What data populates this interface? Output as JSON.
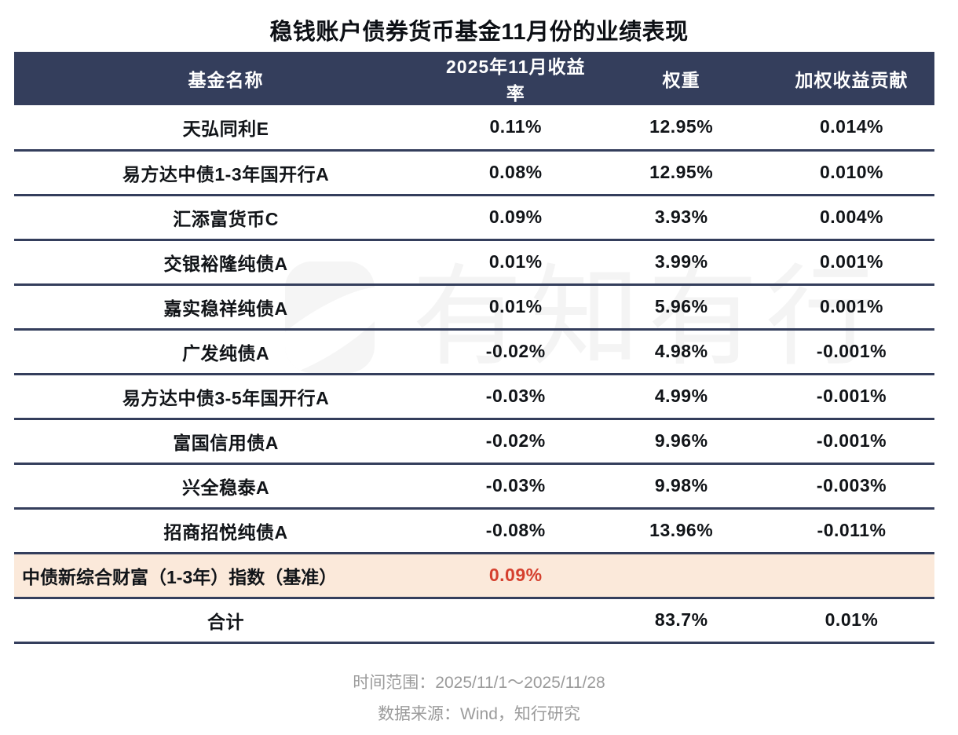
{
  "chart_data": {
    "type": "table",
    "title": "稳钱账户债券货币基金11月份的业绩表现",
    "columns": [
      "基金名称",
      "2025年11月收益率",
      "权重",
      "加权收益贡献"
    ],
    "rows": [
      [
        "天弘同利E",
        "0.11%",
        "12.95%",
        "0.014%"
      ],
      [
        "易方达中债1-3年国开行A",
        "0.08%",
        "12.95%",
        "0.010%"
      ],
      [
        "汇添富货币C",
        "0.09%",
        "3.93%",
        "0.004%"
      ],
      [
        "交银裕隆纯债A",
        "0.01%",
        "3.99%",
        "0.001%"
      ],
      [
        "嘉实稳祥纯债A",
        "0.01%",
        "5.96%",
        "0.001%"
      ],
      [
        "广发纯债A",
        "-0.02%",
        "4.98%",
        "-0.001%"
      ],
      [
        "易方达中债3-5年国开行A",
        "-0.03%",
        "4.99%",
        "-0.001%"
      ],
      [
        "富国信用债A",
        "-0.02%",
        "9.96%",
        "-0.001%"
      ],
      [
        "兴全稳泰A",
        "-0.03%",
        "9.98%",
        "-0.003%"
      ],
      [
        "招商招悦纯债A",
        "-0.08%",
        "13.96%",
        "-0.011%"
      ]
    ],
    "benchmark_row": [
      "中债新综合财富（1-3年）指数（基准）",
      "0.09%",
      "",
      ""
    ],
    "total_row": [
      "合计",
      "",
      "83.7%",
      "0.01%"
    ],
    "layout_hints": {
      "benchmark_row_highlighted": true,
      "benchmark_value_color": "#d5402e",
      "grid": "horizontal-rules-only"
    }
  },
  "watermark": {
    "text": "有知有行",
    "logo_icon": "youzhiyouxing-logo"
  },
  "footer": {
    "time_range": "时间范围：2025/11/1～2025/11/28",
    "data_source": "数据来源：Wind，知行研究"
  },
  "colors": {
    "header_bg": "#343e5c",
    "divider": "#343e5c",
    "benchmark_bg": "#fbe9da",
    "benchmark_value_red": "#d5402e",
    "footer_text": "#9b9b9b",
    "watermark_gray": "#f4f4f4"
  }
}
